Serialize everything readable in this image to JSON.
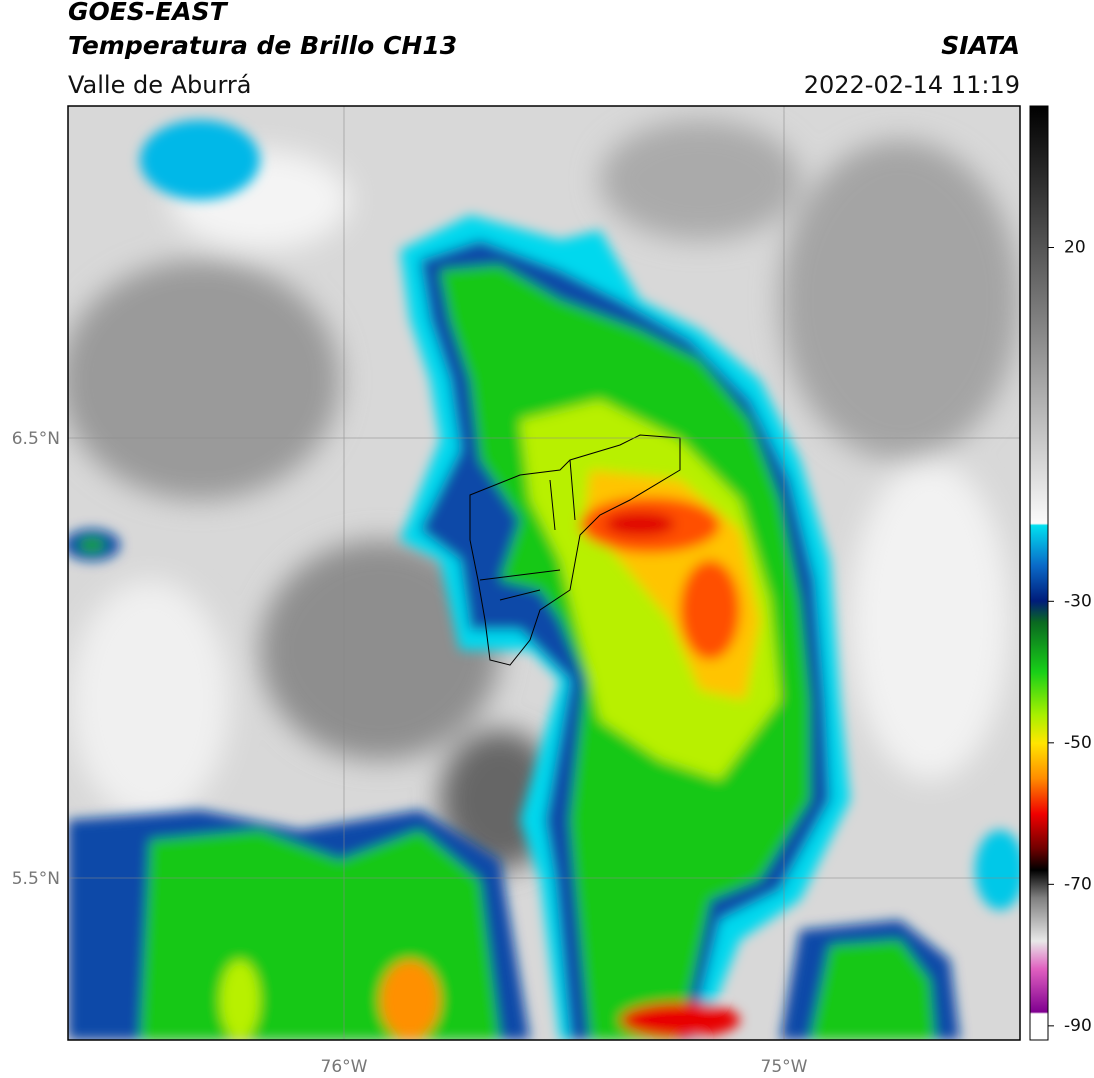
{
  "header": {
    "satellite": "GOES-EAST",
    "product": "Temperatura de Brillo CH13",
    "region": "Valle de Aburrá",
    "source": "SIATA",
    "timestamp": "2022-02-14 11:19"
  },
  "map": {
    "lat_labels": [
      "6.5°N",
      "5.5°N"
    ],
    "lon_labels": [
      "76°W",
      "75°W"
    ]
  },
  "colorbar": {
    "lim": [
      -92,
      40
    ],
    "ticks": [
      20,
      -30,
      -50,
      -70,
      -90
    ]
  }
}
